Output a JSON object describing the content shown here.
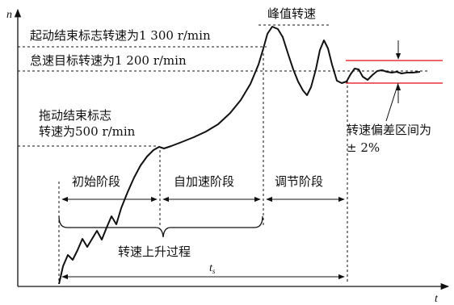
{
  "axes": {
    "y_label": "n",
    "x_label": "t"
  },
  "annotations": {
    "start_end": "起动结束标志转速为1 300 r/min",
    "idle_target": "怠速目标转速为1 200 r/min",
    "drag_end_line1": "拖动结束标志",
    "drag_end_line2": "转速为500 r/min",
    "peak": "峰值转速",
    "deviation_line1": "转速偏差区间为",
    "deviation_line2": "± 2%",
    "rise_process": "转速上升过程",
    "ts_main": "t",
    "ts_sub": "s"
  },
  "phases": {
    "initial": "初始阶段",
    "self_accel": "自加速阶段",
    "regulation": "调节阶段"
  },
  "colors": {
    "line": "#111111",
    "tolerance_band": "#e8303a"
  }
}
